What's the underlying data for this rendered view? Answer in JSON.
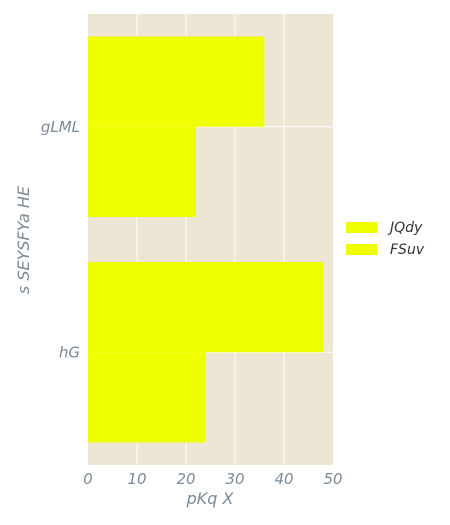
{
  "chart_data": {
    "type": "bar",
    "orientation": "horizontal",
    "categories": [
      "gLML",
      "hG"
    ],
    "series": [
      {
        "name": "JQdy",
        "values": [
          36,
          48
        ],
        "color": "#f0ff00"
      },
      {
        "name": "FSuv",
        "values": [
          22,
          24
        ],
        "color": "#f0ff00"
      }
    ],
    "xlabel": "pKq  X",
    "ylabel": "s SEYSFYa HE",
    "xlim": [
      0,
      50
    ],
    "xticks": [
      "0",
      "10",
      "20",
      "30",
      "40",
      "50"
    ],
    "grid": true,
    "legend_position": "right",
    "background": "#ede6d4"
  }
}
